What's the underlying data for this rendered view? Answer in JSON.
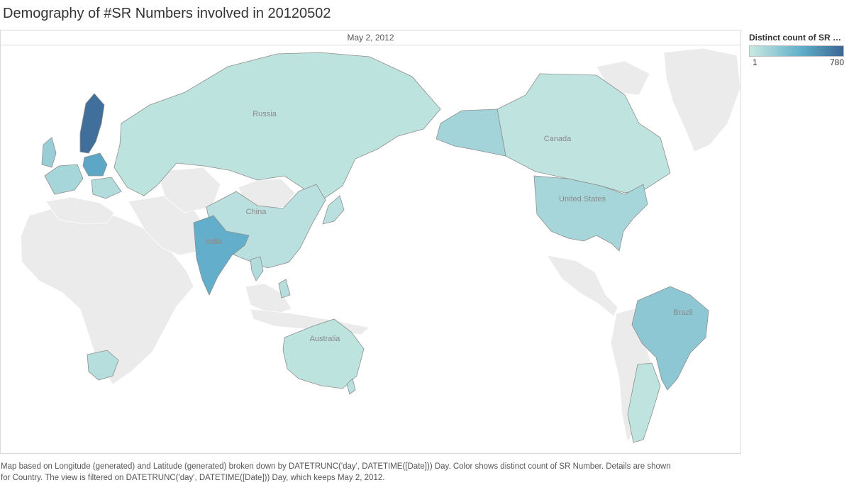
{
  "title": "Demography of #SR Numbers involved in 20120502",
  "pane_header": "May 2, 2012",
  "legend": {
    "title": "Distinct count of SR Nu..",
    "min_label": "1",
    "max_label": "780",
    "color_low": "#c8e9e1",
    "color_mid": "#62aecb",
    "color_high": "#3c6795"
  },
  "colors": {
    "no_data": "#ebebeb",
    "ocean": "#ffffff",
    "border": "#8e8e8e"
  },
  "country_labels": {
    "russia": "Russia",
    "china": "China",
    "india": "India",
    "canada": "Canada",
    "united_states": "United States",
    "brazil": "Brazil",
    "australia": "Australia"
  },
  "caption": {
    "line1": "Map based on Longitude (generated) and Latitude (generated) broken down by DATETRUNC('day', DATETIME([Date])) Day.  Color shows distinct count of SR Number.  Details are shown",
    "line2": "for Country. The view is filtered on DATETRUNC('day', DATETIME([Date])) Day, which keeps May 2, 2012."
  }
}
